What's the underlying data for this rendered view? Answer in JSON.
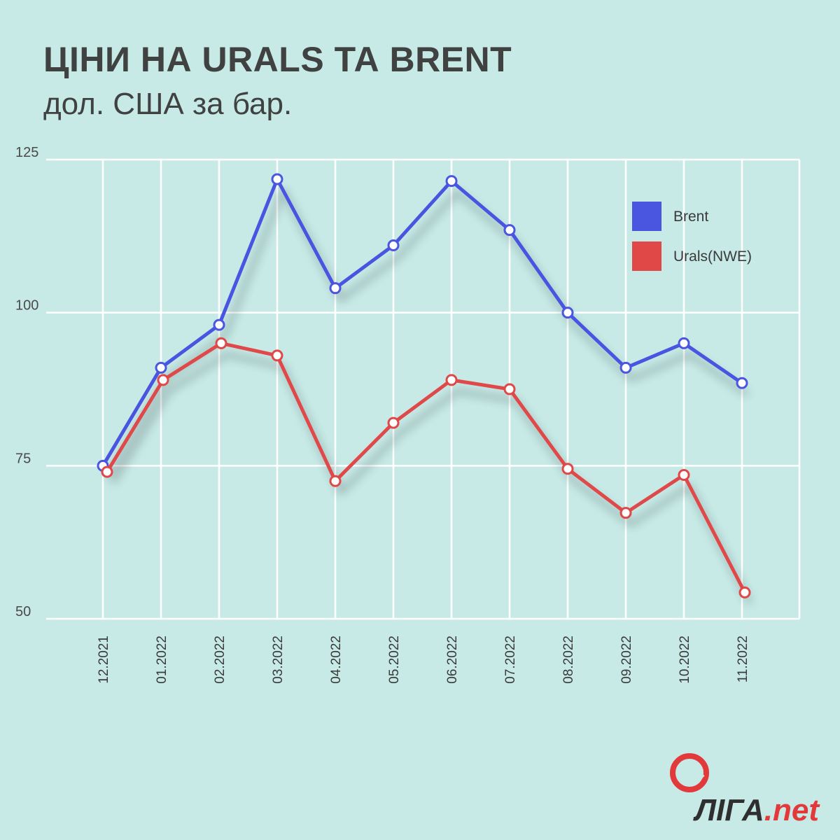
{
  "header": {
    "title": "ЦІНИ НА URALS ТА BRENT",
    "subtitle": "дол. США за бар."
  },
  "colors": {
    "background": "#c7eae7",
    "brent": "#4a55e0",
    "urals": "#e04848",
    "grid": "#ffffff"
  },
  "chart_data": {
    "type": "line",
    "title": "ЦІНИ НА URALS ТА BRENT",
    "subtitle": "дол. США за бар.",
    "categories": [
      "12.2021",
      "01.2022",
      "02.2022",
      "03.2022",
      "04.2022",
      "05.2022",
      "06.2022",
      "07.2022",
      "08.2022",
      "09.2022",
      "10.2022",
      "11.2022"
    ],
    "y_ticks": [
      "125",
      "100",
      "75",
      "50"
    ],
    "ylim": [
      50,
      125
    ],
    "grid": true,
    "legend_position": "top-right",
    "series": [
      {
        "name": "Brent",
        "values": [
          75,
          91,
          98,
          121.8,
          104,
          111,
          121.5,
          113.5,
          100,
          91,
          95,
          88.5
        ]
      },
      {
        "name": "Urals(NWE)",
        "values": [
          74,
          89,
          95,
          93,
          72.5,
          82,
          89,
          87.5,
          74.5,
          67.3,
          73.5,
          54.3
        ]
      }
    ]
  },
  "brand": {
    "name_prefix": "ЛІГА",
    "name_suffix": ".net"
  }
}
